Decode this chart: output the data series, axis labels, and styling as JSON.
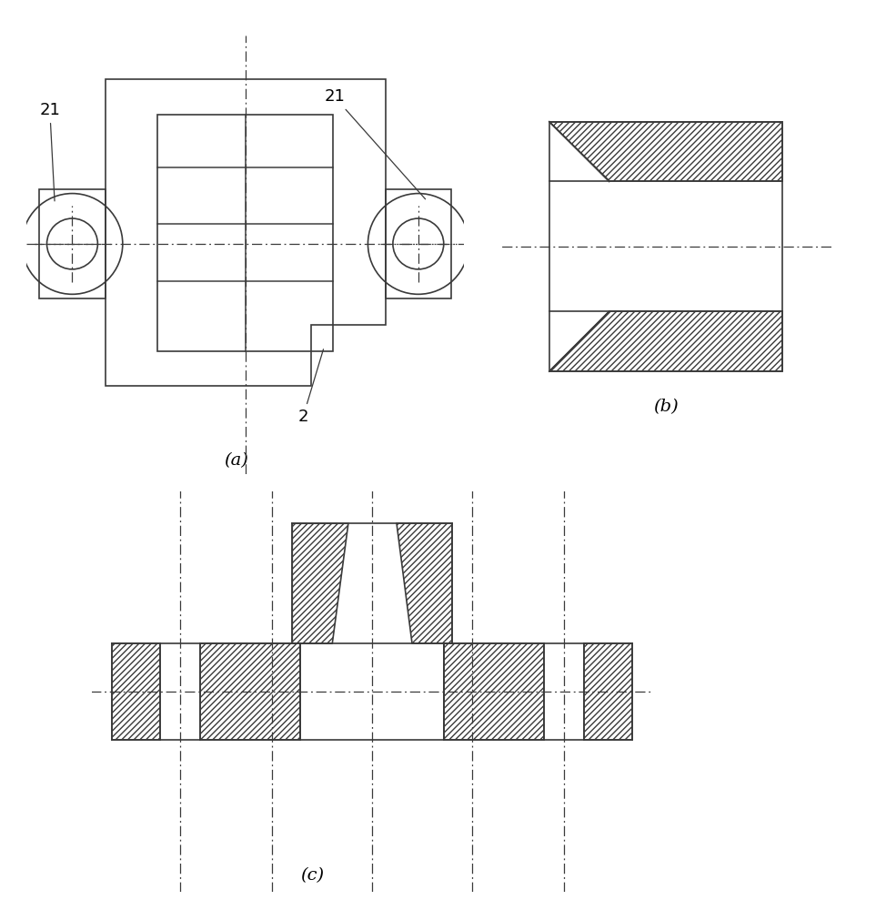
{
  "bg_color": "#ffffff",
  "line_color": "#3a3a3a",
  "label_a": "(a)",
  "label_b": "(b)",
  "label_c": "(c)",
  "font_size": 13,
  "lw_main": 1.2
}
